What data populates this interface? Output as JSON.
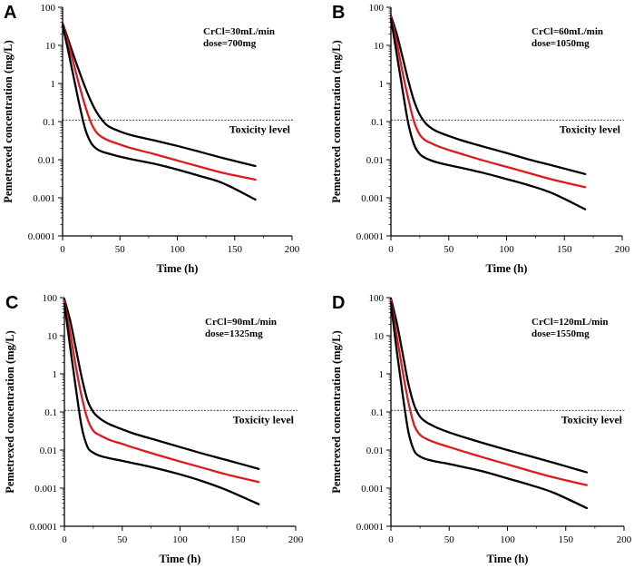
{
  "figure": {
    "background": "#ffffff",
    "line_colors": {
      "bound": "#000000",
      "median": "#e0191f",
      "threshold": "#000000"
    }
  },
  "chart_data": [
    {
      "panel": "A",
      "type": "line",
      "title": "",
      "annotation": [
        "CrCl=30mL/min",
        "dose=700mg"
      ],
      "xlabel": "Time (h)",
      "ylabel": "Pemetrexed concentration (mg/L)",
      "xscale": "linear",
      "yscale": "log",
      "xlim": [
        0,
        200
      ],
      "ylim": [
        0.0001,
        100
      ],
      "xticks": [
        0,
        50,
        100,
        150,
        200
      ],
      "yticks": [
        0.0001,
        0.001,
        0.01,
        0.1,
        1,
        10,
        100
      ],
      "ytick_labels": [
        "0.0001",
        "0.001",
        "0.01",
        "0.1",
        "1",
        "10",
        "100"
      ],
      "reference_line": {
        "y": 0.11,
        "label": "Toxicity level",
        "style": "dashed"
      },
      "series": [
        {
          "name": "upper",
          "color": "#000000",
          "x": [
            0,
            5,
            10,
            15,
            20,
            25,
            30,
            35,
            40,
            50,
            60,
            80,
            100,
            120,
            140,
            168
          ],
          "y": [
            38,
            14,
            5,
            1.9,
            0.75,
            0.33,
            0.17,
            0.105,
            0.075,
            0.055,
            0.044,
            0.032,
            0.023,
            0.016,
            0.011,
            0.0068
          ]
        },
        {
          "name": "median",
          "color": "#e0191f",
          "x": [
            0,
            5,
            10,
            15,
            20,
            25,
            30,
            35,
            40,
            50,
            60,
            80,
            100,
            120,
            140,
            168
          ],
          "y": [
            36,
            11,
            3,
            0.8,
            0.24,
            0.09,
            0.05,
            0.038,
            0.032,
            0.025,
            0.02,
            0.014,
            0.0095,
            0.0065,
            0.0045,
            0.003
          ]
        },
        {
          "name": "lower",
          "color": "#000000",
          "x": [
            0,
            5,
            10,
            15,
            20,
            25,
            30,
            35,
            40,
            50,
            60,
            80,
            100,
            120,
            140,
            168
          ],
          "y": [
            34,
            7,
            1.3,
            0.25,
            0.06,
            0.027,
            0.019,
            0.016,
            0.0145,
            0.012,
            0.0103,
            0.0078,
            0.0055,
            0.0037,
            0.0024,
            0.0009
          ]
        }
      ]
    },
    {
      "panel": "B",
      "type": "line",
      "title": "",
      "annotation": [
        "CrCl=60mL/min",
        "dose=1050mg"
      ],
      "xlabel": "Time (h)",
      "ylabel": "Pemetrexed concentration (mg/L)",
      "xscale": "linear",
      "yscale": "log",
      "xlim": [
        0,
        200
      ],
      "ylim": [
        0.0001,
        100
      ],
      "xticks": [
        0,
        50,
        100,
        150,
        200
      ],
      "yticks": [
        0.0001,
        0.001,
        0.01,
        0.1,
        1,
        10,
        100
      ],
      "ytick_labels": [
        "0.0001",
        "0.001",
        "0.01",
        "0.1",
        "1",
        "10",
        "100"
      ],
      "reference_line": {
        "y": 0.11,
        "label": "Toxicity level",
        "style": "dashed"
      },
      "series": [
        {
          "name": "upper",
          "color": "#000000",
          "x": [
            0,
            5,
            10,
            15,
            20,
            25,
            30,
            35,
            40,
            50,
            60,
            80,
            100,
            120,
            140,
            168
          ],
          "y": [
            60,
            20,
            5,
            1.2,
            0.35,
            0.15,
            0.09,
            0.067,
            0.055,
            0.042,
            0.033,
            0.022,
            0.015,
            0.01,
            0.007,
            0.0042
          ]
        },
        {
          "name": "median",
          "color": "#e0191f",
          "x": [
            0,
            5,
            10,
            15,
            20,
            25,
            30,
            35,
            40,
            50,
            60,
            80,
            100,
            120,
            140,
            168
          ],
          "y": [
            55,
            12,
            2,
            0.4,
            0.1,
            0.045,
            0.032,
            0.027,
            0.023,
            0.018,
            0.0145,
            0.0095,
            0.0065,
            0.0044,
            0.003,
            0.0019
          ]
        },
        {
          "name": "lower",
          "color": "#000000",
          "x": [
            0,
            5,
            10,
            15,
            20,
            25,
            30,
            35,
            40,
            50,
            60,
            80,
            100,
            120,
            140,
            168
          ],
          "y": [
            50,
            6,
            0.7,
            0.09,
            0.025,
            0.014,
            0.011,
            0.0095,
            0.0085,
            0.0072,
            0.0062,
            0.0045,
            0.0031,
            0.0021,
            0.0013,
            0.0005
          ]
        }
      ]
    },
    {
      "panel": "C",
      "type": "line",
      "title": "",
      "annotation": [
        "CrCl=90mL/min",
        "dose=1325mg"
      ],
      "xlabel": "Time (h)",
      "ylabel": "Pemetrexed concentration (mg/L)",
      "xscale": "linear",
      "yscale": "log",
      "xlim": [
        0,
        200
      ],
      "ylim": [
        0.0001,
        100
      ],
      "xticks": [
        0,
        50,
        100,
        150,
        200
      ],
      "yticks": [
        0.0001,
        0.001,
        0.01,
        0.1,
        1,
        10,
        100
      ],
      "ytick_labels": [
        "0.0001",
        "0.001",
        "0.01",
        "0.1",
        "1",
        "10",
        "100"
      ],
      "reference_line": {
        "y": 0.11,
        "label": "Toxicity level",
        "style": "dashed"
      },
      "series": [
        {
          "name": "upper",
          "color": "#000000",
          "x": [
            0,
            5,
            10,
            15,
            20,
            25,
            30,
            35,
            40,
            50,
            60,
            80,
            100,
            120,
            140,
            168
          ],
          "y": [
            90,
            25,
            4.5,
            0.8,
            0.2,
            0.1,
            0.07,
            0.055,
            0.046,
            0.035,
            0.027,
            0.018,
            0.012,
            0.008,
            0.0055,
            0.0032
          ]
        },
        {
          "name": "median",
          "color": "#e0191f",
          "x": [
            0,
            5,
            10,
            15,
            20,
            25,
            30,
            35,
            40,
            50,
            60,
            80,
            100,
            120,
            140,
            168
          ],
          "y": [
            80,
            12,
            1.5,
            0.25,
            0.065,
            0.032,
            0.025,
            0.021,
            0.018,
            0.0145,
            0.0115,
            0.0075,
            0.005,
            0.0034,
            0.0023,
            0.00145
          ]
        },
        {
          "name": "lower",
          "color": "#000000",
          "x": [
            0,
            5,
            10,
            15,
            20,
            25,
            30,
            35,
            40,
            50,
            60,
            80,
            100,
            120,
            140,
            168
          ],
          "y": [
            70,
            5,
            0.4,
            0.04,
            0.012,
            0.0085,
            0.0072,
            0.0065,
            0.006,
            0.0052,
            0.0045,
            0.0033,
            0.0023,
            0.0015,
            0.0009,
            0.00038
          ]
        }
      ]
    },
    {
      "panel": "D",
      "type": "line",
      "title": "",
      "annotation": [
        "CrCl=120mL/min",
        "dose=1550mg"
      ],
      "xlabel": "Time (h)",
      "ylabel": "Pemetrexed concentration (mg/L)",
      "xscale": "linear",
      "yscale": "log",
      "xlim": [
        0,
        200
      ],
      "ylim": [
        0.0001,
        100
      ],
      "xticks": [
        0,
        50,
        100,
        150,
        200
      ],
      "yticks": [
        0.0001,
        0.001,
        0.01,
        0.1,
        1,
        10,
        100
      ],
      "ytick_labels": [
        "0.0001",
        "0.001",
        "0.01",
        "0.1",
        "1",
        "10",
        "100"
      ],
      "reference_line": {
        "y": 0.11,
        "label": "Toxicity level",
        "style": "dashed"
      },
      "series": [
        {
          "name": "upper",
          "color": "#000000",
          "x": [
            0,
            5,
            10,
            15,
            20,
            25,
            30,
            35,
            40,
            50,
            60,
            80,
            100,
            120,
            140,
            168
          ],
          "y": [
            95,
            22,
            3.5,
            0.55,
            0.15,
            0.075,
            0.055,
            0.045,
            0.038,
            0.029,
            0.023,
            0.015,
            0.01,
            0.0068,
            0.0046,
            0.0026
          ]
        },
        {
          "name": "median",
          "color": "#e0191f",
          "x": [
            0,
            5,
            10,
            15,
            20,
            25,
            30,
            35,
            40,
            50,
            60,
            80,
            100,
            120,
            140,
            168
          ],
          "y": [
            85,
            10,
            1.2,
            0.18,
            0.045,
            0.025,
            0.02,
            0.017,
            0.015,
            0.012,
            0.0096,
            0.0063,
            0.0042,
            0.0028,
            0.0019,
            0.0012
          ]
        },
        {
          "name": "lower",
          "color": "#000000",
          "x": [
            0,
            5,
            10,
            15,
            20,
            25,
            30,
            35,
            40,
            50,
            60,
            80,
            100,
            120,
            140,
            168
          ],
          "y": [
            75,
            4,
            0.3,
            0.03,
            0.0095,
            0.0068,
            0.0058,
            0.0053,
            0.0049,
            0.0043,
            0.0037,
            0.0027,
            0.0018,
            0.0012,
            0.00075,
            0.0003
          ]
        }
      ]
    }
  ]
}
